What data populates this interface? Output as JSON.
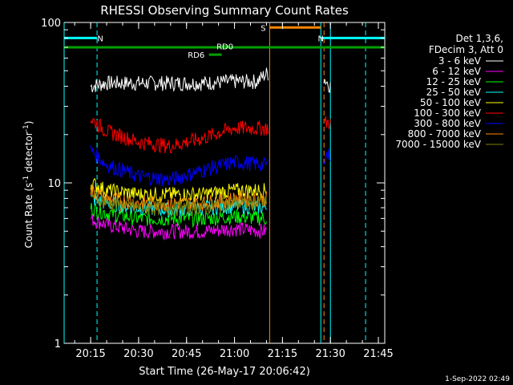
{
  "chart_data": {
    "type": "line",
    "title": "RHESSI Observing Summary Count Rates",
    "xlabel": "Start Time (26-May-17 20:06:42)",
    "ylabel_main": "Count Rate (s",
    "ylabel_sup": "-1",
    "ylabel_mid": " detector",
    "ylabel_sup2": "-1",
    "ylabel_end": ")",
    "y_scale": "log",
    "ylim": [
      1,
      100
    ],
    "xlim": [
      "20:06:42",
      "21:47:00"
    ],
    "x_ticks": [
      "20:15",
      "20:30",
      "20:45",
      "21:00",
      "21:15",
      "21:30",
      "21:45"
    ],
    "y_ticks": [
      "1",
      "10",
      "100"
    ],
    "legend_header": [
      "Det 1,3,6,",
      "FDecim 3, Att 0"
    ],
    "series": [
      {
        "name": "3 - 6 keV",
        "color": "#ffffff",
        "x": [
          "20:15",
          "20:20",
          "20:30",
          "20:40",
          "20:50",
          "21:00",
          "21:07",
          "21:10",
          "21:28",
          "21:30"
        ],
        "values": [
          40,
          42,
          42,
          42,
          42,
          43,
          43,
          48,
          45,
          40
        ]
      },
      {
        "name": "6 - 12 keV",
        "color": "#ff00ff",
        "x": [
          "20:15",
          "20:20",
          "20:30",
          "20:40",
          "20:50",
          "21:00",
          "21:10"
        ],
        "values": [
          6,
          5.5,
          5,
          5,
          5,
          5.2,
          5
        ]
      },
      {
        "name": "12 - 25 keV",
        "color": "#00ff00",
        "x": [
          "20:15",
          "20:20",
          "20:30",
          "20:40",
          "20:50",
          "21:00",
          "21:10"
        ],
        "values": [
          7,
          6.5,
          6,
          6,
          6,
          6.2,
          6
        ]
      },
      {
        "name": "25 - 50 keV",
        "color": "#00ffff",
        "x": [
          "20:15",
          "20:20",
          "20:30",
          "20:40",
          "20:50",
          "21:00",
          "21:10"
        ],
        "values": [
          8,
          7.5,
          7,
          6.8,
          7,
          7.2,
          7
        ]
      },
      {
        "name": "50 - 100 keV",
        "color": "#ffff00",
        "x": [
          "20:15",
          "20:20",
          "20:30",
          "20:40",
          "20:50",
          "21:00",
          "21:10"
        ],
        "values": [
          10,
          9,
          8.5,
          8.5,
          8.5,
          9,
          9
        ]
      },
      {
        "name": "100 - 300 keV",
        "color": "#ff0000",
        "x": [
          "20:15",
          "20:20",
          "20:30",
          "20:40",
          "20:50",
          "21:00",
          "21:10",
          "21:30"
        ],
        "values": [
          25,
          21,
          18,
          17,
          19,
          22,
          22,
          24
        ]
      },
      {
        "name": "300 - 800 keV",
        "color": "#0000ff",
        "x": [
          "20:15",
          "20:20",
          "20:30",
          "20:40",
          "20:50",
          "21:00",
          "21:10",
          "21:30"
        ],
        "values": [
          16,
          13,
          11,
          10.5,
          12,
          13.5,
          13,
          15
        ]
      },
      {
        "name": "800 - 7000 keV",
        "color": "#ff8800",
        "x": [
          "20:15",
          "20:20",
          "20:30",
          "20:40",
          "20:50",
          "21:00",
          "21:10"
        ],
        "values": [
          9,
          8,
          7.5,
          7.5,
          7.5,
          8,
          8
        ]
      },
      {
        "name": "7000 - 15000 keV",
        "color": "#808000",
        "x": [
          "20:15",
          "20:20",
          "20:30",
          "20:40",
          "20:50",
          "21:00",
          "21:10"
        ],
        "values": [
          8.5,
          7.5,
          7,
          7,
          7,
          7.5,
          7.5
        ]
      }
    ],
    "flag_bars": [
      {
        "label": "N",
        "color": "#00ffff",
        "from": "20:06:42",
        "to": "20:17:00",
        "label_at": "20:18:00",
        "y": 80
      },
      {
        "label": "N",
        "color": "#00ffff",
        "from": "21:27:00",
        "to": "21:47:00",
        "y": 80
      },
      {
        "label": "S",
        "color": "#ff8800",
        "from": "21:11:00",
        "to": "21:27:00",
        "label_at": "21:09:00",
        "y": 93
      },
      {
        "label": "",
        "color": "#00a000",
        "from": "20:06:42",
        "to": "21:47:00",
        "y": 70
      },
      {
        "label": "RD0",
        "color": "#00a000",
        "from": "20:56:00",
        "to": "20:58:00",
        "label_at": "20:57:00",
        "y": 71
      },
      {
        "label": "RD6",
        "color": "#00a000",
        "from": "20:52:00",
        "to": "20:56:00",
        "label_at": "20:48:00",
        "y": 63
      }
    ],
    "vlines": [
      {
        "x": "20:06:42",
        "color": "#00ffff",
        "style": "solid"
      },
      {
        "x": "20:17:00",
        "color": "#00ffff",
        "style": "dashed"
      },
      {
        "x": "21:11:00",
        "color": "#ff8800",
        "style": "solid"
      },
      {
        "x": "21:27:00",
        "color": "#00ffff",
        "style": "solid"
      },
      {
        "x": "21:28:00",
        "color": "#ff8800",
        "style": "dashed"
      },
      {
        "x": "21:30:00",
        "color": "#00ffff",
        "style": "solid"
      },
      {
        "x": "21:41:00",
        "color": "#00ffff",
        "style": "dashed"
      }
    ],
    "legend_position": "top-right",
    "grid": false,
    "timestamp": "1-Sep-2022 02:49"
  }
}
